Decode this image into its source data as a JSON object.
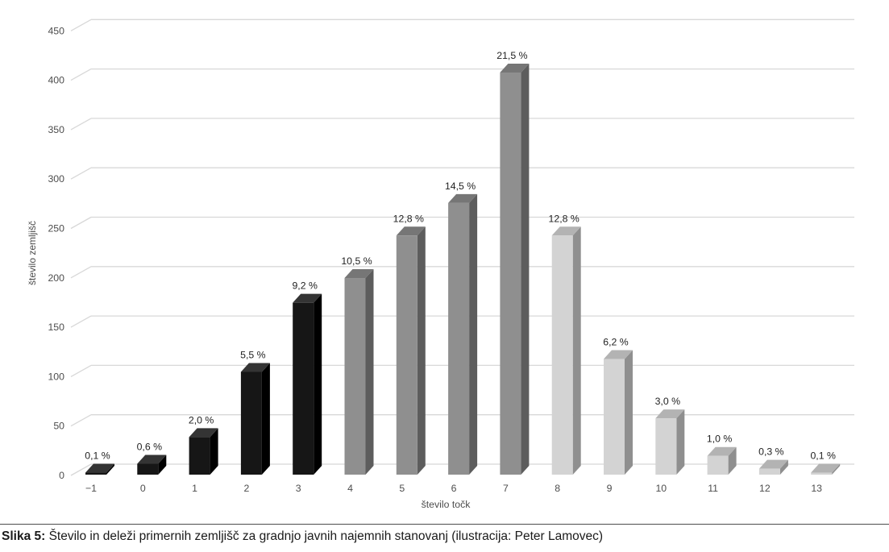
{
  "chart_data": {
    "type": "bar",
    "style": "3d-column",
    "title": "",
    "xlabel": "število točk",
    "ylabel": "število zemljišč",
    "categories": [
      "−1",
      "0",
      "1",
      "2",
      "3",
      "4",
      "5",
      "6",
      "7",
      "8",
      "9",
      "10",
      "11",
      "12",
      "13"
    ],
    "values": [
      2,
      11,
      38,
      104,
      174,
      199,
      242,
      275,
      407,
      242,
      117,
      57,
      19,
      6,
      2
    ],
    "percent_labels": [
      "0,1 %",
      "0,6 %",
      "2,0 %",
      "5,5 %",
      "9,2 %",
      "10,5 %",
      "12,8 %",
      "14,5 %",
      "21,5 %",
      "12,8 %",
      "6,2 %",
      "3,0 %",
      "1,0 %",
      "0,3 %",
      "0,1 %"
    ],
    "y_ticks": [
      0,
      50,
      100,
      150,
      200,
      250,
      300,
      350,
      400,
      450
    ],
    "ylim": [
      0,
      450
    ],
    "grid": true,
    "legend": false,
    "color_groups": [
      "black",
      "black",
      "black",
      "black",
      "black",
      "gray",
      "gray",
      "gray",
      "gray",
      "light",
      "light",
      "light",
      "light",
      "light",
      "light"
    ],
    "bar_colors": {
      "black": {
        "front": "#161616",
        "top": "#343434",
        "side": "#000000"
      },
      "gray": {
        "front": "#8f8f8f",
        "top": "#767676",
        "side": "#5d5d5d"
      },
      "light": {
        "front": "#d3d3d3",
        "top": "#b3b3b3",
        "side": "#8f8f8f"
      }
    },
    "gridline_color": "#d8d8d8",
    "axis_text_color": "#4d4d4d",
    "value_label_color": "#1f1f1f"
  },
  "caption": {
    "prefix": "Slika 5:",
    "text": "Število in deleži primernih zemljišč za gradnjo javnih najemnih stanovanj (ilustracija: Peter Lamovec)"
  }
}
